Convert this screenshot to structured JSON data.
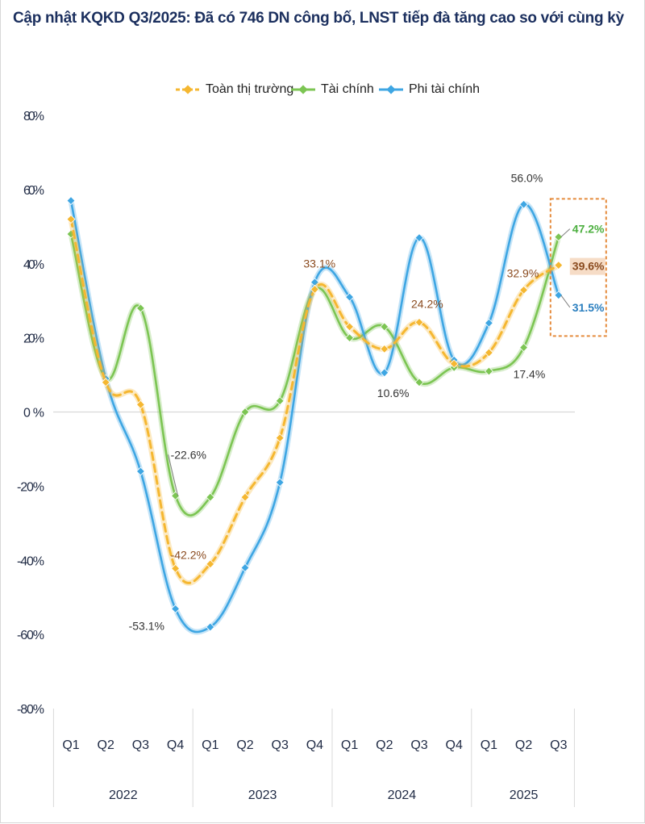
{
  "title": "Cập nhật KQKD Q3/2025: Đã có 746 DN công bố,  LNST tiếp đà tăng cao so với cùng kỳ",
  "legend": [
    {
      "name": "Toàn thị trường",
      "color": "#f5b731"
    },
    {
      "name": "Tài chính",
      "color": "#7cc553"
    },
    {
      "name": "Phi tài chính",
      "color": "#3ea6e3"
    }
  ],
  "chart_data": {
    "type": "line",
    "title": "Cập nhật KQKD Q3/2025: Đã có 746 DN công bố,  LNST tiếp đà tăng cao so với cùng kỳ",
    "categories": [
      "Q1",
      "Q2",
      "Q3",
      "Q4",
      "Q1",
      "Q2",
      "Q3",
      "Q4",
      "Q1",
      "Q2",
      "Q3",
      "Q4",
      "Q1",
      "Q2",
      "Q3"
    ],
    "years": [
      {
        "label": "2022",
        "quarters": 4
      },
      {
        "label": "2023",
        "quarters": 4
      },
      {
        "label": "2024",
        "quarters": 4
      },
      {
        "label": "2025",
        "quarters": 3
      }
    ],
    "y_ticks": [
      "80%",
      "60%",
      "40%",
      "20%",
      "0%",
      "-20%",
      "-40%",
      "-60%",
      "-80%"
    ],
    "ylim": [
      -80,
      80
    ],
    "unit": "%",
    "series": [
      {
        "name": "Toàn thị trường",
        "color": "#f5b731",
        "dashed": true,
        "values": [
          52,
          8,
          2,
          -42.2,
          -41,
          -23,
          -7,
          33.1,
          23,
          17,
          24.2,
          13,
          16,
          32.9,
          39.6
        ]
      },
      {
        "name": "Tài chính",
        "color": "#7cc553",
        "dashed": false,
        "values": [
          48,
          9,
          28,
          -22.6,
          -23,
          0,
          3,
          33,
          20,
          23,
          8,
          12,
          11,
          17.4,
          47.2
        ]
      },
      {
        "name": "Phi tài chính",
        "color": "#3ea6e3",
        "dashed": false,
        "values": [
          57,
          9,
          -16,
          -53.1,
          -58,
          -42,
          -19,
          35,
          31,
          10.6,
          47,
          14,
          24,
          56.0,
          31.5
        ]
      }
    ],
    "data_labels": [
      {
        "series": 1,
        "index": 3,
        "text": "-22.6%",
        "color": "#333333",
        "bold": false,
        "leader": true
      },
      {
        "series": 0,
        "index": 3,
        "text": "-42.2%",
        "color": "#8a4a1e",
        "bold": false
      },
      {
        "series": 2,
        "index": 3,
        "text": "-53.1%",
        "color": "#333333",
        "bold": false
      },
      {
        "series": 0,
        "index": 7,
        "text": "33.1%",
        "color": "#8a4a1e",
        "bold": false
      },
      {
        "series": 2,
        "index": 9,
        "text": "10.6%",
        "color": "#333333",
        "bold": false
      },
      {
        "series": 0,
        "index": 10,
        "text": "24.2%",
        "color": "#8a4a1e",
        "bold": false
      },
      {
        "series": 0,
        "index": 13,
        "text": "32.9%",
        "color": "#8a4a1e",
        "bold": false
      },
      {
        "series": 2,
        "index": 13,
        "text": "56.0%",
        "color": "#333333",
        "bold": false
      },
      {
        "series": 1,
        "index": 13,
        "text": "17.4%",
        "color": "#333333",
        "bold": false
      },
      {
        "series": 1,
        "index": 14,
        "text": "47.2%",
        "color": "#4caf3f",
        "bold": true,
        "leader": true
      },
      {
        "series": 0,
        "index": 14,
        "text": "39.6%",
        "color": "#8a4a1e",
        "bold": true,
        "highlight": "#f6dcc6"
      },
      {
        "series": 2,
        "index": 14,
        "text": "31.5%",
        "color": "#2b7fbf",
        "bold": true,
        "leader": true
      }
    ],
    "highlight_box_color": "#e58b3c"
  }
}
